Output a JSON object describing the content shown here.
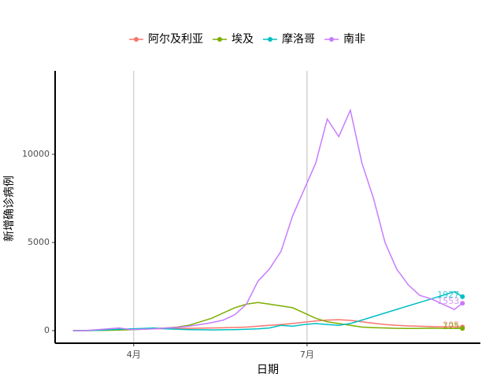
{
  "chart_data": {
    "type": "line",
    "x_label": "日期",
    "y_label": "新增确诊病例",
    "x": [
      2.95,
      3.15,
      3.35,
      3.55,
      3.75,
      3.95,
      4.15,
      4.35,
      4.55,
      4.75,
      4.95,
      5.15,
      5.35,
      5.55,
      5.75,
      5.95,
      6.15,
      6.35,
      6.55,
      6.75,
      6.95,
      7.15,
      7.35,
      7.55,
      7.75,
      7.95,
      8.15,
      8.35,
      8.55,
      8.75,
      8.95,
      9.15,
      9.35,
      9.55,
      9.69
    ],
    "xlim": [
      2.64,
      10.0
    ],
    "xticks": [
      {
        "value": 4,
        "label": "4月"
      },
      {
        "value": 7,
        "label": "7月"
      }
    ],
    "ylim": [
      -714,
      14732
    ],
    "yticks": [
      0,
      5000,
      10000
    ],
    "grid": "x",
    "legend": "top",
    "series": [
      {
        "name": "阿尔及利亚",
        "color": "#F8766D",
        "values": [
          0,
          0,
          10,
          30,
          60,
          80,
          90,
          100,
          110,
          120,
          130,
          140,
          150,
          160,
          180,
          200,
          250,
          300,
          350,
          400,
          480,
          550,
          600,
          620,
          580,
          500,
          420,
          350,
          300,
          270,
          250,
          230,
          220,
          210,
          205
        ]
      },
      {
        "name": "埃及",
        "color": "#7CAE00",
        "values": [
          0,
          0,
          10,
          20,
          30,
          50,
          80,
          120,
          150,
          200,
          300,
          500,
          700,
          1000,
          1300,
          1500,
          1600,
          1500,
          1400,
          1300,
          1000,
          700,
          500,
          400,
          300,
          200,
          170,
          150,
          130,
          120,
          130,
          140,
          130,
          120,
          125
        ]
      },
      {
        "name": "摩洛哥",
        "color": "#00BFC4",
        "values": [
          0,
          0,
          20,
          50,
          80,
          100,
          120,
          150,
          100,
          80,
          60,
          50,
          40,
          50,
          60,
          80,
          100,
          150,
          300,
          250,
          350,
          400,
          350,
          300,
          400,
          600,
          800,
          1000,
          1200,
          1400,
          1600,
          1800,
          2000,
          2200,
          1927
        ]
      },
      {
        "name": "南非",
        "color": "#C77CFF",
        "values": [
          0,
          0,
          50,
          100,
          150,
          60,
          80,
          100,
          150,
          180,
          250,
          350,
          450,
          600,
          900,
          1500,
          2800,
          3500,
          4500,
          6500,
          8000,
          9500,
          12000,
          11000,
          12500,
          9500,
          7500,
          5000,
          3500,
          2600,
          2000,
          1800,
          1500,
          1200,
          1553
        ]
      }
    ]
  }
}
